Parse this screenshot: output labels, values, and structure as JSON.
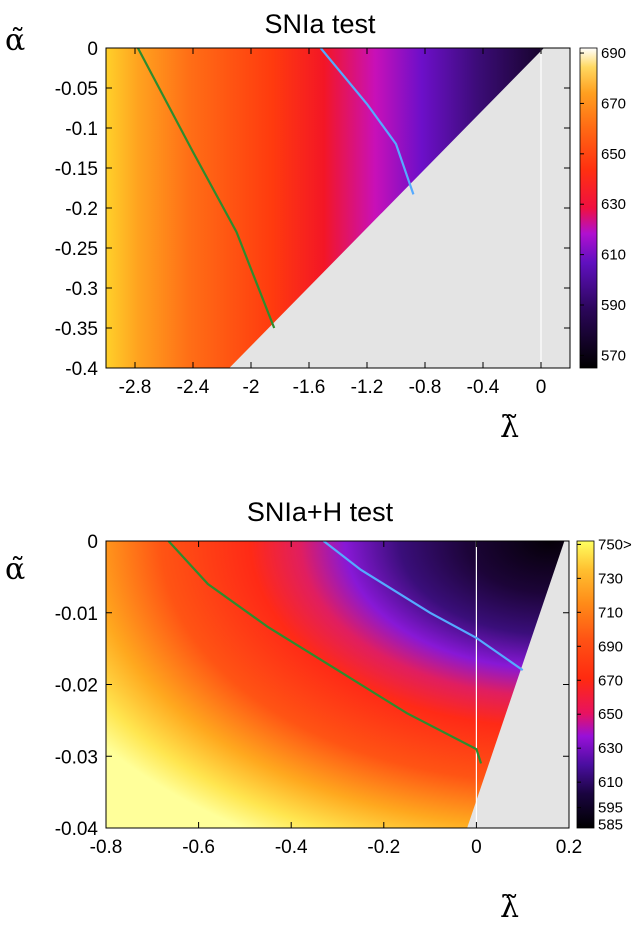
{
  "chart_data": [
    {
      "type": "heatmap",
      "title": "SNIa test",
      "xlabel": "λ̃",
      "ylabel": "α̃",
      "xlim": [
        -3.0,
        0.2
      ],
      "ylim": [
        -0.4,
        0.0
      ],
      "xticks": [
        "-2.8",
        "-2.4",
        "-2",
        "-1.6",
        "-1.2",
        "-0.8",
        "-0.4",
        "0"
      ],
      "yticks": [
        "0",
        "-0.05",
        "-0.1",
        "-0.15",
        "-0.2",
        "-0.25",
        "-0.3",
        "-0.35",
        "-0.4"
      ],
      "colorbar": {
        "ticks": [
          "690",
          "670",
          "650",
          "630",
          "610",
          "590",
          "570"
        ],
        "range": [
          565,
          692
        ]
      },
      "excluded_region": "lower-right",
      "contours": [
        {
          "color": "#2e8b2e",
          "points": [
            [
              -2.78,
              0.0
            ],
            [
              -2.4,
              -0.13
            ],
            [
              -2.1,
              -0.23
            ],
            [
              -1.84,
              -0.35
            ]
          ]
        },
        {
          "color": "#55aaff",
          "points": [
            [
              -1.52,
              0.0
            ],
            [
              -1.2,
              -0.07
            ],
            [
              -1.0,
              -0.12
            ],
            [
              -0.88,
              -0.183
            ]
          ]
        }
      ]
    },
    {
      "type": "heatmap",
      "title": "SNIa+H test",
      "xlabel": "λ̃",
      "ylabel": "α̃",
      "xlim": [
        -0.8,
        0.2
      ],
      "ylim": [
        -0.04,
        0.0
      ],
      "xticks": [
        "-0.8",
        "-0.6",
        "-0.4",
        "-0.2",
        "0",
        "0.2"
      ],
      "yticks": [
        "0",
        "-0.01",
        "-0.02",
        "-0.03",
        "-0.04"
      ],
      "colorbar": {
        "ticks": [
          "750>",
          "730",
          "710",
          "690",
          "670",
          "650",
          "630",
          "610",
          "595",
          "585"
        ],
        "range": [
          583,
          752
        ]
      },
      "excluded_region": "lower-right",
      "contours": [
        {
          "color": "#2e8b2e",
          "points": [
            [
              -0.665,
              0.0
            ],
            [
              -0.58,
              -0.006
            ],
            [
              -0.45,
              -0.012
            ],
            [
              -0.3,
              -0.018
            ],
            [
              -0.15,
              -0.024
            ],
            [
              0.0,
              -0.029
            ],
            [
              0.01,
              -0.031
            ]
          ]
        },
        {
          "color": "#55aaff",
          "points": [
            [
              -0.33,
              0.0
            ],
            [
              -0.25,
              -0.004
            ],
            [
              -0.1,
              -0.01
            ],
            [
              0.0,
              -0.0135
            ],
            [
              0.1,
              -0.018
            ]
          ]
        }
      ]
    }
  ]
}
